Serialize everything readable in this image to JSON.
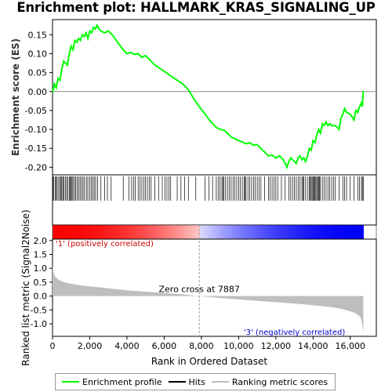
{
  "chart_data": {
    "type": "line",
    "title": "Enrichment plot: HALLMARK_KRAS_SIGNALING_UP",
    "es_panel": {
      "ylabel": "Enrichment score (ES)",
      "ylim": [
        -0.22,
        0.19
      ],
      "yticks": [
        0.15,
        0.1,
        0.05,
        0.0,
        -0.05,
        -0.1,
        -0.15,
        -0.2
      ],
      "ytick_labels": [
        "0.15",
        "0.10",
        "0.05",
        "0.00",
        "-0.05",
        "-0.10",
        "-0.15",
        "-0.20"
      ],
      "series": [
        {
          "name": "Enrichment profile",
          "color": "#00ff00",
          "x": [
            0,
            100,
            200,
            300,
            400,
            500,
            600,
            700,
            800,
            900,
            1000,
            1100,
            1200,
            1300,
            1400,
            1500,
            1600,
            1700,
            1800,
            1900,
            2000,
            2100,
            2200,
            2300,
            2400,
            2500,
            2600,
            2800,
            3000,
            3200,
            3500,
            3800,
            4000,
            4200,
            4400,
            4600,
            4800,
            5000,
            5200,
            5500,
            5800,
            6100,
            6400,
            6700,
            7000,
            7300,
            7600,
            7887,
            8200,
            8500,
            8800,
            9000,
            9200,
            9400,
            9600,
            9800,
            10000,
            10200,
            10400,
            10600,
            10800,
            11000,
            11200,
            11400,
            11600,
            11800,
            12000,
            12200,
            12400,
            12600,
            12700,
            12800,
            13000,
            13100,
            13200,
            13300,
            13400,
            13500,
            13600,
            13700,
            13800,
            13900,
            14000,
            14100,
            14200,
            14300,
            14400,
            14500,
            14600,
            14700,
            14800,
            14900,
            15000,
            15200,
            15400,
            15500,
            15600,
            15700,
            15800,
            16000,
            16200,
            16300,
            16400,
            16500,
            16600,
            16650,
            16700
          ],
          "y": [
            -0.003,
            0.02,
            0.01,
            0.035,
            0.03,
            0.06,
            0.08,
            0.075,
            0.07,
            0.1,
            0.12,
            0.11,
            0.135,
            0.13,
            0.14,
            0.135,
            0.15,
            0.145,
            0.155,
            0.14,
            0.16,
            0.155,
            0.17,
            0.165,
            0.175,
            0.165,
            0.16,
            0.155,
            0.16,
            0.15,
            0.13,
            0.11,
            0.1,
            0.103,
            0.098,
            0.1,
            0.09,
            0.095,
            0.085,
            0.07,
            0.06,
            0.05,
            0.04,
            0.03,
            0.02,
            0.005,
            -0.02,
            -0.04,
            -0.06,
            -0.08,
            -0.095,
            -0.1,
            -0.102,
            -0.11,
            -0.12,
            -0.125,
            -0.13,
            -0.133,
            -0.138,
            -0.135,
            -0.142,
            -0.14,
            -0.15,
            -0.16,
            -0.17,
            -0.168,
            -0.175,
            -0.17,
            -0.18,
            -0.2,
            -0.185,
            -0.175,
            -0.185,
            -0.19,
            -0.175,
            -0.17,
            -0.18,
            -0.175,
            -0.185,
            -0.17,
            -0.15,
            -0.155,
            -0.13,
            -0.135,
            -0.115,
            -0.1,
            -0.11,
            -0.085,
            -0.09,
            -0.08,
            -0.09,
            -0.085,
            -0.09,
            -0.09,
            -0.1,
            -0.07,
            -0.06,
            -0.045,
            -0.055,
            -0.06,
            -0.075,
            -0.05,
            -0.055,
            -0.04,
            -0.03,
            -0.04,
            0.002
          ]
        }
      ]
    },
    "hits": [
      20,
      70,
      140,
      200,
      250,
      330,
      400,
      460,
      500,
      560,
      620,
      700,
      760,
      830,
      900,
      960,
      1000,
      1050,
      1100,
      1180,
      1250,
      1330,
      1400,
      1480,
      1560,
      1640,
      1720,
      1820,
      1900,
      2000,
      2080,
      2160,
      2240,
      2320,
      2420,
      2600,
      2800,
      2950,
      3150,
      3800,
      4100,
      4250,
      4350,
      4450,
      4600,
      4700,
      4800,
      4900,
      5000,
      5100,
      5200,
      5300,
      5500,
      5700,
      5900,
      6050,
      6150,
      6250,
      6350,
      6700,
      6900,
      7100,
      7300,
      7700,
      8200,
      8400,
      8600,
      8800,
      8900,
      9000,
      9100,
      9150,
      9200,
      9300,
      9400,
      9500,
      9600,
      9700,
      9800,
      9900,
      10000,
      10100,
      10200,
      10300,
      10350,
      10400,
      10500,
      10600,
      10700,
      10800,
      10900,
      11000,
      11100,
      11200,
      11400,
      11600,
      11700,
      11800,
      11900,
      12000,
      12100,
      12300,
      12500,
      12700,
      12800,
      12900,
      13000,
      13100,
      13200,
      13300,
      13400,
      13450,
      13500,
      13600,
      13700,
      13800,
      13850,
      13900,
      13950,
      14000,
      14050,
      14100,
      14150,
      14200,
      14250,
      14300,
      14350,
      14400,
      14500,
      14600,
      14700,
      14800,
      14900,
      15000,
      15100,
      15200,
      15400,
      15600,
      15700,
      15800,
      16000,
      16200,
      16400,
      16500,
      16600,
      16650,
      16700
    ],
    "rank_metric_panel": {
      "ylabel": "Ranked list metric (Signal2Noise)",
      "xlabel": "Rank in Ordered Dataset",
      "ylim": [
        -1.45,
        2.05
      ],
      "yticks": [
        2.0,
        1.5,
        1.0,
        0.5,
        0.0,
        -0.5,
        -1.0
      ],
      "ytick_labels": [
        "2.0",
        "1.5",
        "1.0",
        "0.5",
        "0.0",
        "-0.5",
        "-1.0"
      ],
      "xlim": [
        0,
        17400
      ],
      "xticks": [
        0,
        2000,
        4000,
        6000,
        8000,
        10000,
        12000,
        14000,
        16000
      ],
      "xtick_labels": [
        "0",
        "2,000",
        "4,000",
        "6,000",
        "8,000",
        "10,000",
        "12,000",
        "14,000",
        "16,000"
      ],
      "metric_x": [
        0,
        50,
        100,
        200,
        300,
        500,
        800,
        1200,
        1600,
        2000,
        3000,
        4000,
        5000,
        6000,
        7000,
        7887,
        9000,
        10000,
        11000,
        12000,
        13000,
        14000,
        15000,
        15500,
        16000,
        16300,
        16500,
        16600,
        16650,
        16700
      ],
      "metric_y": [
        1.1,
        0.85,
        0.75,
        0.66,
        0.6,
        0.53,
        0.47,
        0.42,
        0.38,
        0.35,
        0.28,
        0.21,
        0.16,
        0.11,
        0.06,
        0.0,
        -0.07,
        -0.12,
        -0.17,
        -0.22,
        -0.27,
        -0.33,
        -0.4,
        -0.46,
        -0.55,
        -0.62,
        -0.72,
        -0.85,
        -1.05,
        -1.3
      ],
      "zero_cross_label": "Zero cross at 7887",
      "zero_cross": 7887,
      "pos_label": "'1' (positively correlated)",
      "neg_label": "'3' (negatively correlated)"
    },
    "n_genes": 16700,
    "legend": [
      {
        "label": "Enrichment profile",
        "color": "#00ff00"
      },
      {
        "label": "Hits",
        "color": "#000000"
      },
      {
        "label": "Ranking metric scores",
        "color": "#bebebe"
      }
    ],
    "colors": {
      "positive": "#ff0000",
      "negative": "#0000ff",
      "metric_fill": "#bebebe",
      "pos_text": "#cc0000",
      "neg_text": "#0000cc"
    }
  }
}
